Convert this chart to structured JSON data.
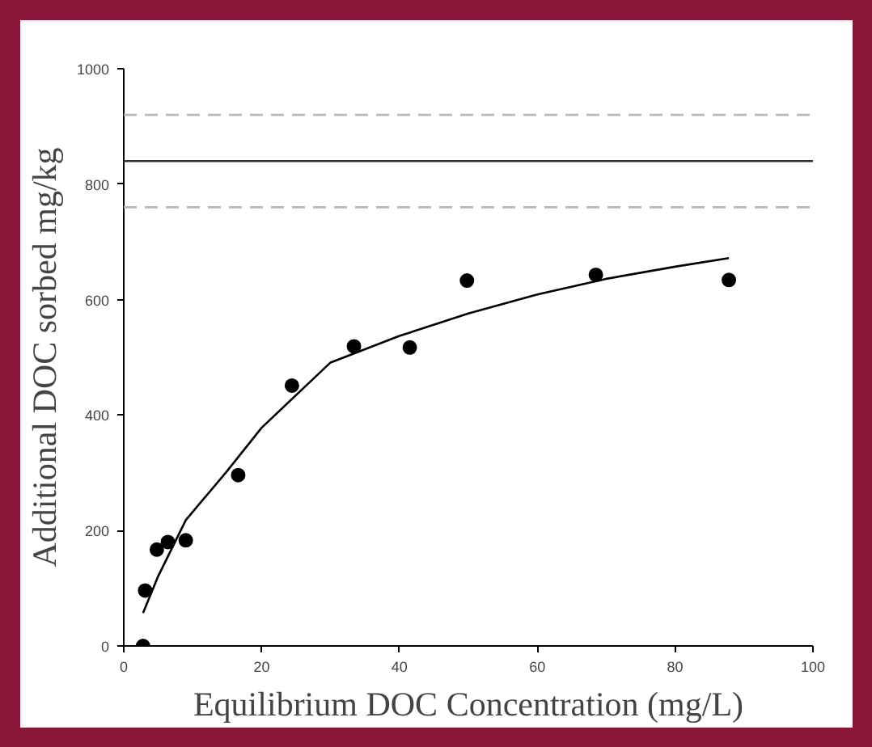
{
  "chart_data": {
    "type": "scatter",
    "xlabel": "Equilibrium DOC Concentration (mg/L)",
    "ylabel": "Additional DOC sorbed mg/kg",
    "x": [
      2.8,
      3.1,
      4.8,
      6.4,
      9.0,
      16.6,
      24.4,
      33.4,
      41.5,
      49.8,
      68.5,
      87.8
    ],
    "series": [
      {
        "color": "#000000",
        "marker": "circle",
        "values": [
          0,
          96,
          167,
          180,
          183,
          296,
          451,
          519,
          517,
          633,
          643,
          634
        ]
      },
      {
        "type": "line",
        "color": "#000000",
        "line_style": "solid",
        "x": [
          2.8,
          5,
          9,
          15,
          20,
          30,
          40,
          50,
          60,
          70,
          80,
          87.8
        ],
        "values": [
          57,
          121,
          218,
          303,
          378,
          491,
          537,
          576,
          609,
          636,
          657,
          672
        ]
      }
    ],
    "ref_lines": [
      {
        "axis": "y",
        "value": 840,
        "label": null,
        "color": "#333333",
        "line_style": "solid"
      },
      {
        "axis": "y",
        "value": 760,
        "label": null,
        "color": "#b8b8b8",
        "line_style": "dashed"
      },
      {
        "axis": "y",
        "value": 920,
        "label": null,
        "color": "#b8b8b8",
        "line_style": "dashed"
      }
    ],
    "xlim": [
      0,
      100
    ],
    "ylim": [
      0,
      1000
    ],
    "xticks": [
      0,
      20,
      40,
      60,
      80,
      100
    ],
    "yticks": [
      0,
      200,
      400,
      600,
      800,
      1000
    ],
    "grid": false
  }
}
